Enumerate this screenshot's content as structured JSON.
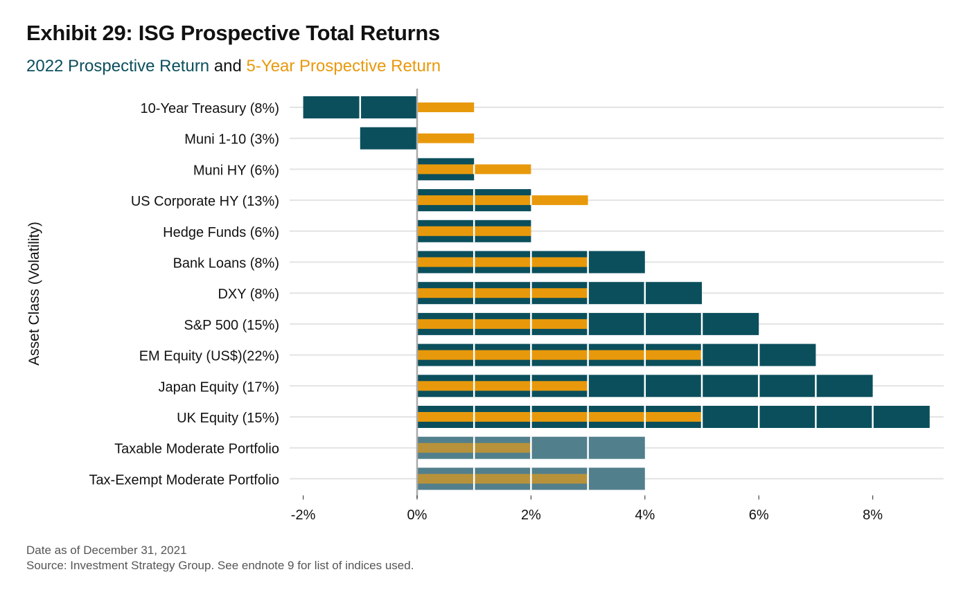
{
  "title": "Exhibit 29: ISG Prospective Total Returns",
  "subtitle": {
    "part1": "2022 Prospective Return",
    "connector": " and ",
    "part2": "5-Year Prospective Return"
  },
  "footer": {
    "line1": "Date as of December 31, 2021",
    "line2": "Source: Investment Strategy Group. See endnote 9 for list of indices used."
  },
  "colors": {
    "prospective_2022": "#0b4f5c",
    "prospective_5yr": "#e8990b",
    "portfolio_2022": "#527f8c",
    "portfolio_5yr": "#b8923a",
    "grid": "#e3e3e3",
    "zero_line": "#aaaaaa"
  },
  "chart_data": {
    "type": "bar",
    "orientation": "horizontal",
    "ylabel": "Asset Class (Volatility)",
    "xlim": [
      -2,
      9
    ],
    "x_ticks": [
      -2,
      0,
      2,
      4,
      6,
      8
    ],
    "x_tick_labels": [
      "-2%",
      "0%",
      "2%",
      "4%",
      "6%",
      "8%"
    ],
    "grid": true,
    "categories": [
      "10-Year Treasury (8%)",
      "Muni 1-10 (3%)",
      "Muni HY (6%)",
      "US Corporate HY (13%)",
      "Hedge Funds (6%)",
      "Bank Loans (8%)",
      "DXY (8%)",
      "S&P 500 (15%)",
      "EM Equity (US$)(22%)",
      "Japan Equity (17%)",
      "UK Equity (15%)",
      "Taxable Moderate Portfolio",
      "Tax-Exempt Moderate Portfolio"
    ],
    "portfolio_categories": [
      "Taxable Moderate Portfolio",
      "Tax-Exempt Moderate Portfolio"
    ],
    "series": [
      {
        "name": "2022 Prospective Return",
        "values": [
          -2,
          -1,
          1,
          2,
          2,
          4,
          5,
          6,
          7,
          8,
          9,
          4,
          4
        ]
      },
      {
        "name": "5-Year Prospective Return",
        "values": [
          1,
          1,
          2,
          3,
          2,
          3,
          3,
          3,
          5,
          3,
          5,
          2,
          3
        ]
      }
    ]
  }
}
